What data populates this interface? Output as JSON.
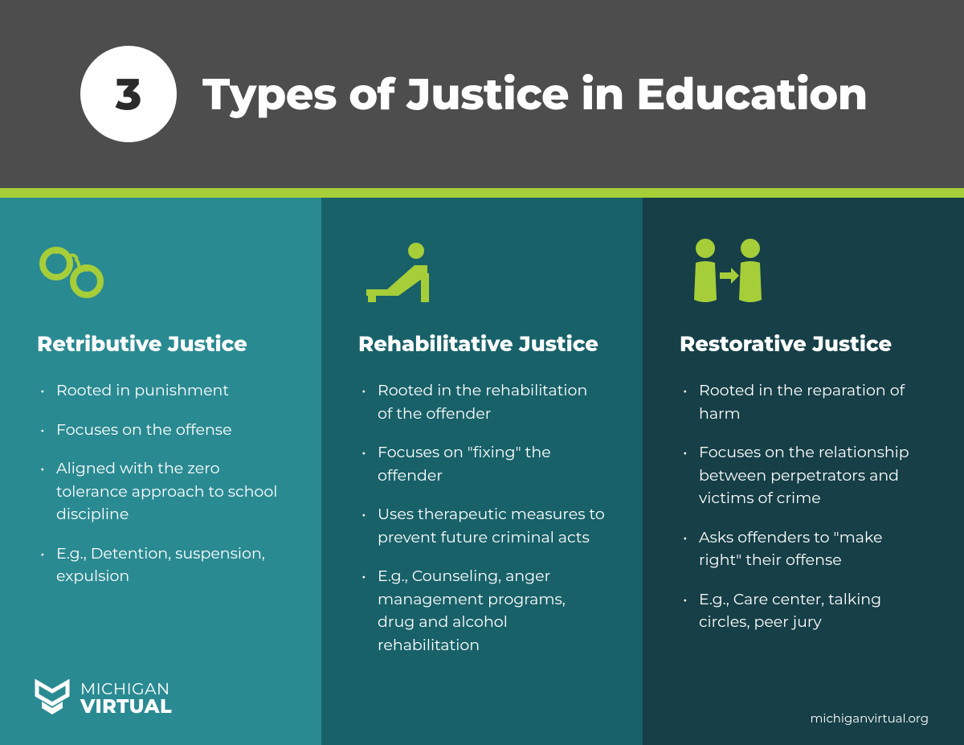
{
  "colors": {
    "header_bg": "#4d4d4d",
    "header_circle_text": "#2b2b2b",
    "accent": "#a6ce39",
    "icon": "#a6ce39",
    "col1_bg": "#2a8a92",
    "col2_bg": "#186169",
    "col3_bg": "#163f47"
  },
  "header": {
    "number": "3",
    "title": "Types of Justice in Education"
  },
  "columns": [
    {
      "icon": "handcuffs-icon",
      "title": "Retributive Justice",
      "bullets": [
        "Rooted in punishment",
        "Focuses on the offense",
        "Aligned with the zero tolerance approach to school discipline",
        "E.g., Detention, suspension, expulsion"
      ]
    },
    {
      "icon": "therapy-icon",
      "title": "Rehabilitative Justice",
      "bullets": [
        "Rooted in the rehabilitation of the offender",
        "Focuses on \"fixing\" the offender",
        "Uses therapeutic measures to prevent future criminal acts",
        "E.g., Counseling, anger management programs, drug and alcohol rehabilitation"
      ]
    },
    {
      "icon": "people-icon",
      "title": "Restorative Justice",
      "bullets": [
        "Rooted in the reparation of harm",
        "Focuses on the relationship between perpetrators and victims of crime",
        "Asks offenders to \"make right\" their offense",
        "E.g., Care center, talking circles, peer jury"
      ]
    }
  ],
  "logo": {
    "line1": "MICHIGAN",
    "line2": "VIRTUAL"
  },
  "url": "michiganvirtual.org"
}
